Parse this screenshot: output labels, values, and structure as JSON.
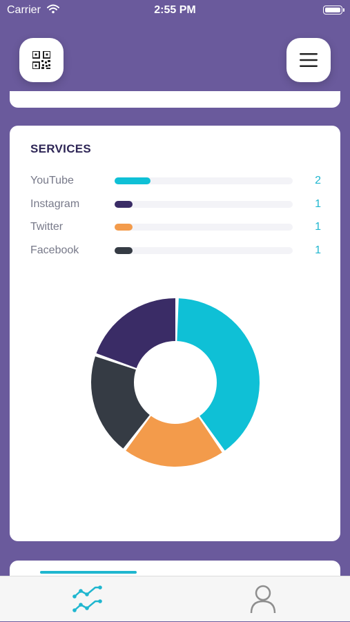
{
  "status_bar": {
    "carrier": "Carrier",
    "time": "2:55 PM"
  },
  "header": {
    "qr_icon": "qr-code-icon",
    "menu_icon": "hamburger-menu-icon"
  },
  "services_card": {
    "title": "SERVICES",
    "services": [
      {
        "name": "YouTube",
        "count": "2",
        "value": 2,
        "color": "#0fc0d6"
      },
      {
        "name": "Instagram",
        "count": "1",
        "value": 1,
        "color": "#3a2c66"
      },
      {
        "name": "Twitter",
        "count": "1",
        "value": 1,
        "color": "#f39b4b"
      },
      {
        "name": "Facebook",
        "count": "1",
        "value": 1,
        "color": "#353b44"
      }
    ],
    "max_value": 10
  },
  "chart_data": {
    "type": "pie",
    "donut": true,
    "categories": [
      "YouTube",
      "Twitter",
      "Facebook",
      "Instagram"
    ],
    "values": [
      2,
      1,
      1,
      1
    ],
    "colors": [
      "#0fc0d6",
      "#f39b4b",
      "#353b44",
      "#3a2c66"
    ]
  },
  "tab_bar": {
    "tabs": [
      {
        "icon": "stats-chart-icon",
        "active": true
      },
      {
        "icon": "user-profile-icon",
        "active": false
      }
    ],
    "active_color": "#1fb6cf",
    "inactive_color": "#8e8e8e"
  }
}
